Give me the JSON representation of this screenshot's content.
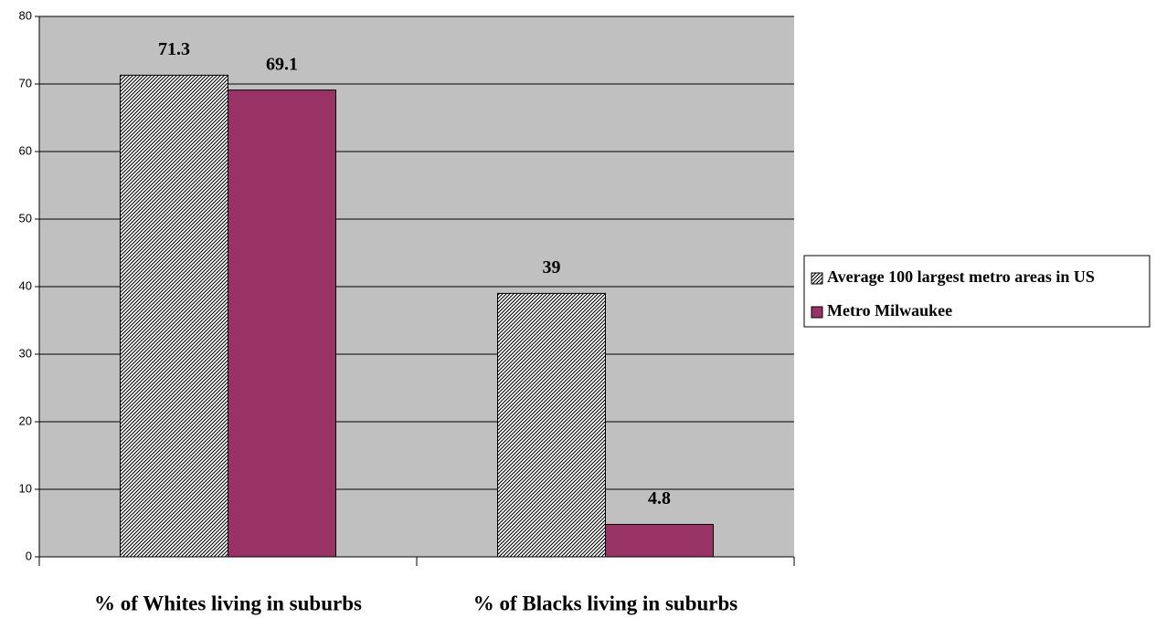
{
  "chart_data": {
    "type": "bar",
    "categories": [
      "% of Whites living in suburbs",
      "% of Blacks living in suburbs"
    ],
    "series": [
      {
        "name": "Average 100 largest metro areas in US",
        "color": "#000000",
        "pattern": "hatch",
        "values": [
          71.3,
          39
        ]
      },
      {
        "name": "Metro Milwaukee",
        "color": "#993366",
        "values": [
          69.1,
          4.8
        ]
      }
    ],
    "ylim": [
      0,
      80
    ],
    "yticks": [
      0,
      10,
      20,
      30,
      40,
      50,
      60,
      70,
      80
    ],
    "grid": true,
    "background": "#c0c0c0",
    "legend": "right"
  }
}
